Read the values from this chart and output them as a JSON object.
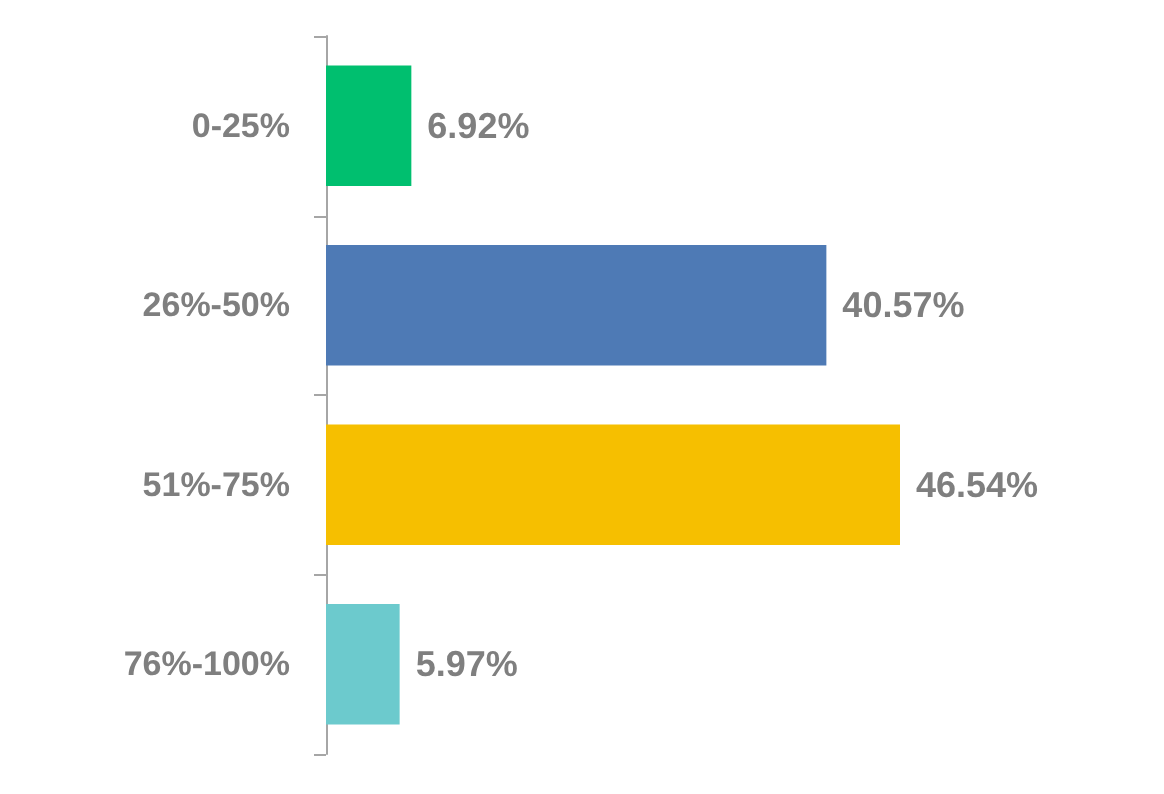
{
  "chart_data": {
    "type": "bar",
    "orientation": "horizontal",
    "categories": [
      "0-25%",
      "26%-50%",
      "51%-75%",
      "76%-100%"
    ],
    "values": [
      6.92,
      40.57,
      46.54,
      5.97
    ],
    "colors": [
      "#00bf6f",
      "#4e7ab5",
      "#f6bf00",
      "#6ccacd"
    ],
    "value_labels": [
      "6.92%",
      "40.57%",
      "46.54%",
      "5.97%"
    ],
    "grid": false
  }
}
